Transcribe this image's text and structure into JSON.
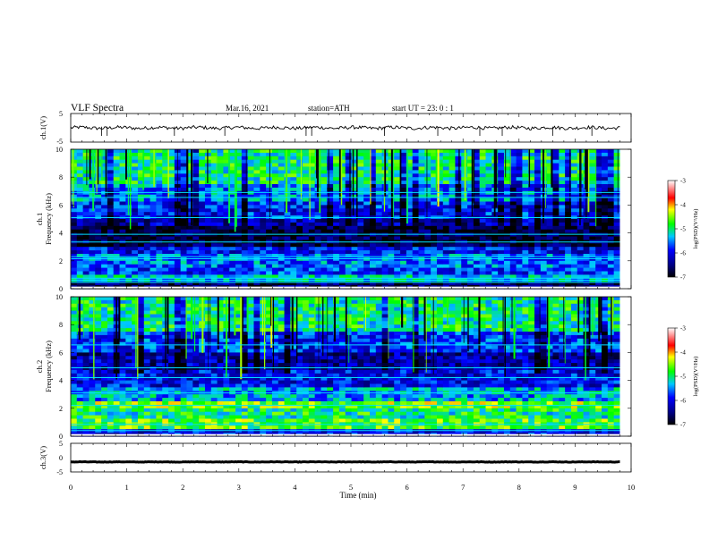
{
  "header": {
    "title": "VLF  Spectra",
    "date": "Mar.16, 2021",
    "station": "station=ATH",
    "start": "start  UT  =   23: 0  : 1"
  },
  "chart_data": [
    {
      "id": "ch1",
      "type": "line",
      "title": "",
      "ylabel": "ch.1(V)",
      "ylim": [
        -5,
        5
      ],
      "y_ticks": [
        "5",
        "-5"
      ],
      "baseline": 0.0,
      "noise_amplitude": 0.6,
      "spikes": [
        0.55,
        0.65,
        1.85,
        2.75,
        4.2,
        4.3,
        5.6,
        6.55,
        7.3,
        7.7,
        8.6,
        9.3
      ]
    },
    {
      "id": "ch1_spec",
      "type": "heatmap",
      "title": "",
      "ylabel": "ch.1\nFrequency (kHz)",
      "ylim": [
        0,
        10
      ],
      "y_ticks": [
        "0",
        "2",
        "4",
        "6",
        "8",
        "10"
      ],
      "time_extent_min": 9.8,
      "colorbar": {
        "label": "log(PSD)(V²/Hz)",
        "ticks": [
          "-3",
          "-4",
          "-5",
          "-6",
          "-7"
        ],
        "range": [
          -7,
          -3
        ]
      },
      "bands": [
        {
          "from": 0.0,
          "to": 0.4,
          "level": -6.6
        },
        {
          "from": 0.4,
          "to": 1.0,
          "level": -5.3
        },
        {
          "from": 1.0,
          "to": 1.6,
          "level": -5.8
        },
        {
          "from": 1.6,
          "to": 2.4,
          "level": -5.6
        },
        {
          "from": 2.4,
          "to": 3.0,
          "level": -6.0
        },
        {
          "from": 3.0,
          "to": 4.4,
          "level": -6.8
        },
        {
          "from": 4.4,
          "to": 5.1,
          "level": -6.3
        },
        {
          "from": 5.1,
          "to": 6.2,
          "level": -5.9
        },
        {
          "from": 6.2,
          "to": 7.4,
          "level": -5.5
        },
        {
          "from": 7.4,
          "to": 10.0,
          "level": -5.0
        }
      ],
      "lines_khz": [
        0.45,
        0.6,
        0.75,
        2.15,
        2.3,
        3.35,
        3.9,
        5.1,
        6.55,
        6.9
      ]
    },
    {
      "id": "ch2_spec",
      "type": "heatmap",
      "title": "",
      "ylabel": "ch.2\nFrequency (kHz)",
      "ylim": [
        0,
        10
      ],
      "y_ticks": [
        "0",
        "2",
        "4",
        "6",
        "8",
        "10"
      ],
      "time_extent_min": 9.8,
      "colorbar": {
        "label": "log(PSD)(V²/Hz)",
        "ticks": [
          "-3",
          "-4",
          "-5",
          "-6",
          "-7"
        ],
        "range": [
          -7,
          -3
        ]
      },
      "bands": [
        {
          "from": 0.0,
          "to": 0.5,
          "level": -6.0
        },
        {
          "from": 0.5,
          "to": 1.2,
          "level": -4.7
        },
        {
          "from": 1.2,
          "to": 2.0,
          "level": -5.0
        },
        {
          "from": 2.0,
          "to": 2.6,
          "level": -4.6
        },
        {
          "from": 2.6,
          "to": 3.6,
          "level": -5.4
        },
        {
          "from": 3.6,
          "to": 4.8,
          "level": -6.0
        },
        {
          "from": 4.8,
          "to": 6.0,
          "level": -6.3
        },
        {
          "from": 6.0,
          "to": 7.5,
          "level": -5.8
        },
        {
          "from": 7.5,
          "to": 10.0,
          "level": -5.0
        }
      ],
      "lines_khz": [
        0.4,
        0.85,
        2.2,
        3.1,
        4.2,
        4.9,
        6.55
      ]
    },
    {
      "id": "ch3",
      "type": "line",
      "title": "",
      "ylabel": "ch.3(V)",
      "ylim": [
        -5,
        5
      ],
      "y_ticks": [
        "5",
        "0",
        "-5"
      ],
      "baseline": -1.5,
      "noise_amplitude": 0.08,
      "spikes": []
    }
  ],
  "x_axis": {
    "label": "Time  (min)",
    "xlim": [
      0,
      10
    ],
    "ticks": [
      "0",
      "1",
      "2",
      "3",
      "4",
      "5",
      "6",
      "7",
      "8",
      "9",
      "10"
    ]
  },
  "colors": {
    "frame": "#000000",
    "trace": "#000000",
    "background": "#ffffff"
  }
}
